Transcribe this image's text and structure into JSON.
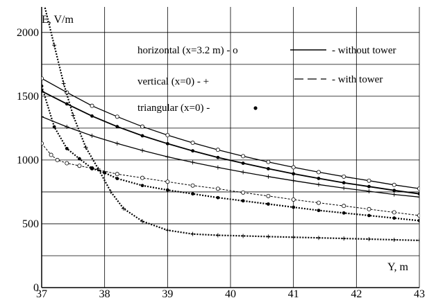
{
  "chart_data": {
    "type": "line",
    "ylabel": "E, V/m",
    "xlabel": "Y, m",
    "xlim": [
      37,
      43
    ],
    "ylim": [
      0,
      2200
    ],
    "x_ticks": [
      37,
      38,
      39,
      40,
      41,
      42,
      43
    ],
    "y_ticks": [
      0,
      500,
      1000,
      1500,
      2000
    ],
    "grid": true,
    "grid_y_lines": [
      250,
      500,
      750,
      1000,
      1250,
      1500,
      1750,
      2000
    ],
    "legend": {
      "configurations": [
        {
          "label": "horizontal (x=3.2 m) - o",
          "marker": "circle-open"
        },
        {
          "label": "vertical (x=0) -  +",
          "marker": "plus"
        },
        {
          "label": "triangular (x=0) -",
          "marker": "dot-filled"
        }
      ],
      "line_styles": [
        {
          "label": "- without tower",
          "style": "solid"
        },
        {
          "label": "- with tower",
          "style": "dashed"
        }
      ]
    },
    "series": [
      {
        "config": "horizontal",
        "tower": "without",
        "marker": "circle-open",
        "x": [
          37.0,
          37.4,
          37.8,
          38.2,
          38.6,
          39.0,
          39.4,
          39.8,
          40.2,
          40.6,
          41.0,
          41.4,
          41.8,
          42.2,
          42.6,
          43.0
        ],
        "y": [
          1640,
          1530,
          1425,
          1340,
          1262,
          1195,
          1135,
          1080,
          1030,
          985,
          943,
          905,
          870,
          838,
          805,
          776
        ]
      },
      {
        "config": "triangular",
        "tower": "without",
        "marker": "dot-filled",
        "x": [
          37.0,
          37.4,
          37.8,
          38.2,
          38.6,
          39.0,
          39.4,
          39.8,
          40.2,
          40.6,
          41.0,
          41.4,
          41.8,
          42.2,
          42.6,
          43.0
        ],
        "y": [
          1540,
          1440,
          1345,
          1262,
          1190,
          1128,
          1072,
          1020,
          975,
          932,
          892,
          856,
          822,
          792,
          762,
          735
        ]
      },
      {
        "config": "vertical",
        "tower": "without",
        "marker": "plus",
        "x": [
          37.0,
          37.4,
          37.8,
          38.2,
          38.6,
          39.0,
          39.4,
          39.8,
          40.2,
          40.6,
          41.0,
          41.4,
          41.8,
          42.2,
          42.6,
          43.0
        ],
        "y": [
          1340,
          1260,
          1190,
          1130,
          1075,
          1025,
          982,
          942,
          905,
          870,
          838,
          808,
          780,
          755,
          730,
          710
        ]
      },
      {
        "config": "horizontal",
        "tower": "with",
        "marker": "circle-open",
        "x": [
          37.0,
          37.15,
          37.25,
          37.4,
          37.6,
          37.8,
          38.2,
          38.6,
          39.0,
          39.4,
          39.8,
          40.2,
          40.6,
          41.0,
          41.4,
          41.8,
          42.2,
          42.6,
          43.0
        ],
        "y": [
          1130,
          1040,
          1000,
          975,
          955,
          935,
          890,
          860,
          830,
          800,
          775,
          745,
          718,
          690,
          665,
          640,
          615,
          590,
          565
        ]
      },
      {
        "config": "triangular",
        "tower": "with",
        "marker": "dot-filled",
        "x": [
          37.0,
          37.2,
          37.4,
          37.6,
          37.8,
          38.0,
          38.2,
          38.6,
          39.0,
          39.4,
          39.8,
          40.2,
          40.6,
          41.0,
          41.4,
          41.8,
          42.2,
          42.6,
          43.0
        ],
        "y": [
          1580,
          1260,
          1090,
          1010,
          935,
          900,
          855,
          800,
          765,
          735,
          705,
          680,
          655,
          630,
          605,
          585,
          565,
          545,
          525
        ]
      },
      {
        "config": "vertical",
        "tower": "with",
        "marker": "plus",
        "x": [
          37.0,
          37.2,
          37.35,
          37.5,
          37.7,
          37.9,
          38.1,
          38.3,
          38.6,
          39.0,
          39.4,
          39.8,
          40.2,
          40.6,
          41.0,
          41.4,
          41.8,
          42.2,
          42.6,
          43.0
        ],
        "y": [
          2300,
          1900,
          1600,
          1350,
          1100,
          930,
          750,
          620,
          520,
          450,
          420,
          410,
          405,
          400,
          395,
          390,
          385,
          380,
          375,
          370
        ]
      }
    ]
  }
}
